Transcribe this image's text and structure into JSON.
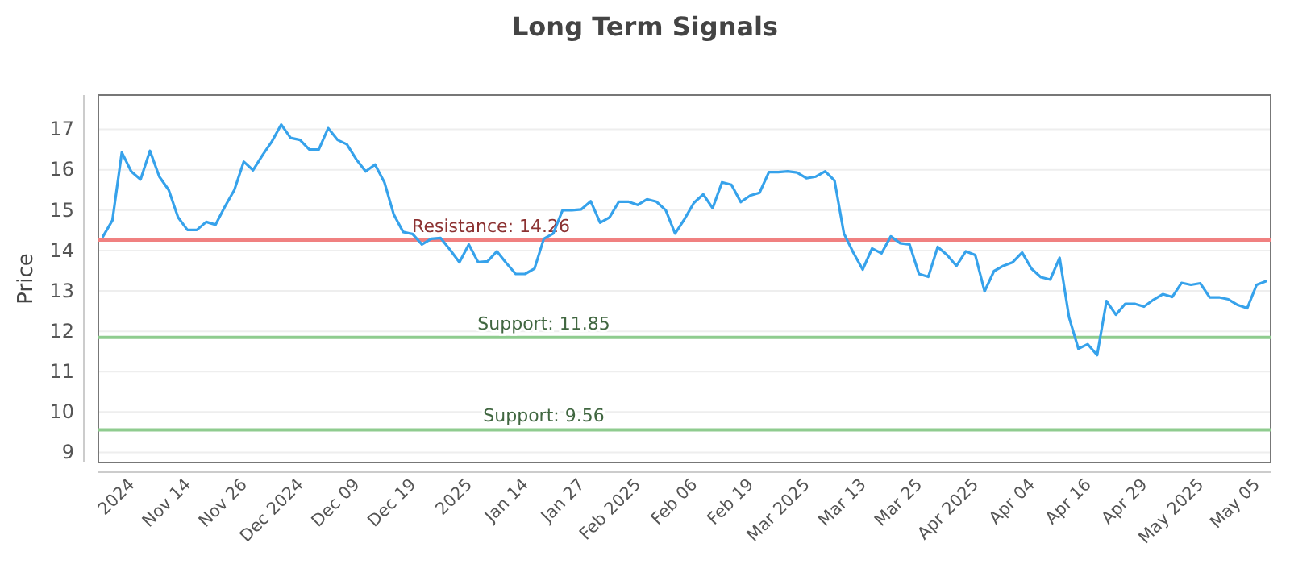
{
  "chart_data": {
    "type": "line",
    "title": "Long Term Signals",
    "ylabel": "Price",
    "categories": [
      null,
      null,
      null,
      "2024",
      null,
      null,
      null,
      null,
      null,
      "Nov 14",
      null,
      null,
      null,
      null,
      null,
      "Nov 26",
      null,
      null,
      null,
      null,
      null,
      "Dec 2024",
      null,
      null,
      null,
      null,
      null,
      "Dec 09",
      null,
      null,
      null,
      null,
      null,
      "Dec 19",
      null,
      null,
      null,
      null,
      null,
      "2025",
      null,
      null,
      null,
      null,
      null,
      "Jan 14",
      null,
      null,
      null,
      null,
      null,
      "Jan 27",
      null,
      null,
      null,
      null,
      null,
      "Feb 2025",
      null,
      null,
      null,
      null,
      null,
      "Feb 06",
      null,
      null,
      null,
      null,
      null,
      "Feb 19",
      null,
      null,
      null,
      null,
      null,
      "Mar 2025",
      null,
      null,
      null,
      null,
      null,
      "Mar 13",
      null,
      null,
      null,
      null,
      null,
      "Mar 25",
      null,
      null,
      null,
      null,
      null,
      "Apr 2025",
      null,
      null,
      null,
      null,
      null,
      "Apr 04",
      null,
      null,
      null,
      null,
      null,
      "Apr 16",
      null,
      null,
      null,
      null,
      null,
      "Apr 29",
      null,
      null,
      null,
      null,
      null,
      "May 2025",
      null,
      null,
      null,
      null,
      null,
      "May 05",
      null
    ],
    "series": [
      {
        "color": "#36a2eb",
        "values": [
          14.35,
          14.75,
          16.43,
          15.96,
          15.76,
          16.47,
          15.83,
          15.5,
          14.82,
          14.51,
          14.51,
          14.71,
          14.64,
          15.09,
          15.5,
          16.2,
          15.99,
          16.36,
          16.7,
          17.12,
          16.79,
          16.74,
          16.5,
          16.5,
          17.03,
          16.74,
          16.63,
          16.26,
          15.96,
          16.13,
          15.69,
          14.89,
          14.46,
          14.41,
          14.15,
          14.29,
          14.31,
          14.02,
          13.71,
          14.15,
          13.71,
          13.73,
          13.98,
          13.69,
          13.42,
          13.42,
          13.55,
          14.29,
          14.42,
          15.0,
          15.0,
          15.02,
          15.22,
          14.69,
          14.82,
          15.21,
          15.21,
          15.13,
          15.27,
          15.21,
          15.0,
          14.42,
          14.78,
          15.18,
          15.39,
          15.05,
          15.69,
          15.63,
          15.2,
          15.36,
          15.43,
          15.94,
          15.94,
          15.96,
          15.93,
          15.79,
          15.83,
          15.96,
          15.73,
          14.42,
          13.95,
          13.53,
          14.05,
          13.93,
          14.35,
          14.18,
          14.15,
          13.42,
          13.35,
          14.09,
          13.89,
          13.62,
          13.98,
          13.89,
          12.99,
          13.49,
          13.62,
          13.71,
          13.95,
          13.55,
          13.34,
          13.28,
          13.82,
          12.35,
          11.57,
          11.68,
          11.41,
          12.75,
          12.41,
          12.68,
          12.68,
          12.61,
          12.78,
          12.92,
          12.85,
          13.2,
          13.15,
          13.19,
          12.84,
          12.84,
          12.79,
          12.65,
          12.57,
          13.15,
          13.24
        ]
      }
    ],
    "ylim": [
      8.75,
      17.85
    ],
    "yticks": [
      9,
      10,
      11,
      12,
      13,
      14,
      15,
      16,
      17
    ],
    "grid": "y",
    "marker": "none",
    "line_style": "solid",
    "ref_lines": [
      {
        "axis": "y",
        "value": 14.26,
        "label": "Resistance: 14.26",
        "color": "#f08080"
      },
      {
        "axis": "y",
        "value": 11.85,
        "label": "Support: 11.85",
        "color": "#8fcc8f"
      },
      {
        "axis": "y",
        "value": 9.56,
        "label": "Support: 9.56",
        "color": "#8fcc8f"
      }
    ]
  }
}
